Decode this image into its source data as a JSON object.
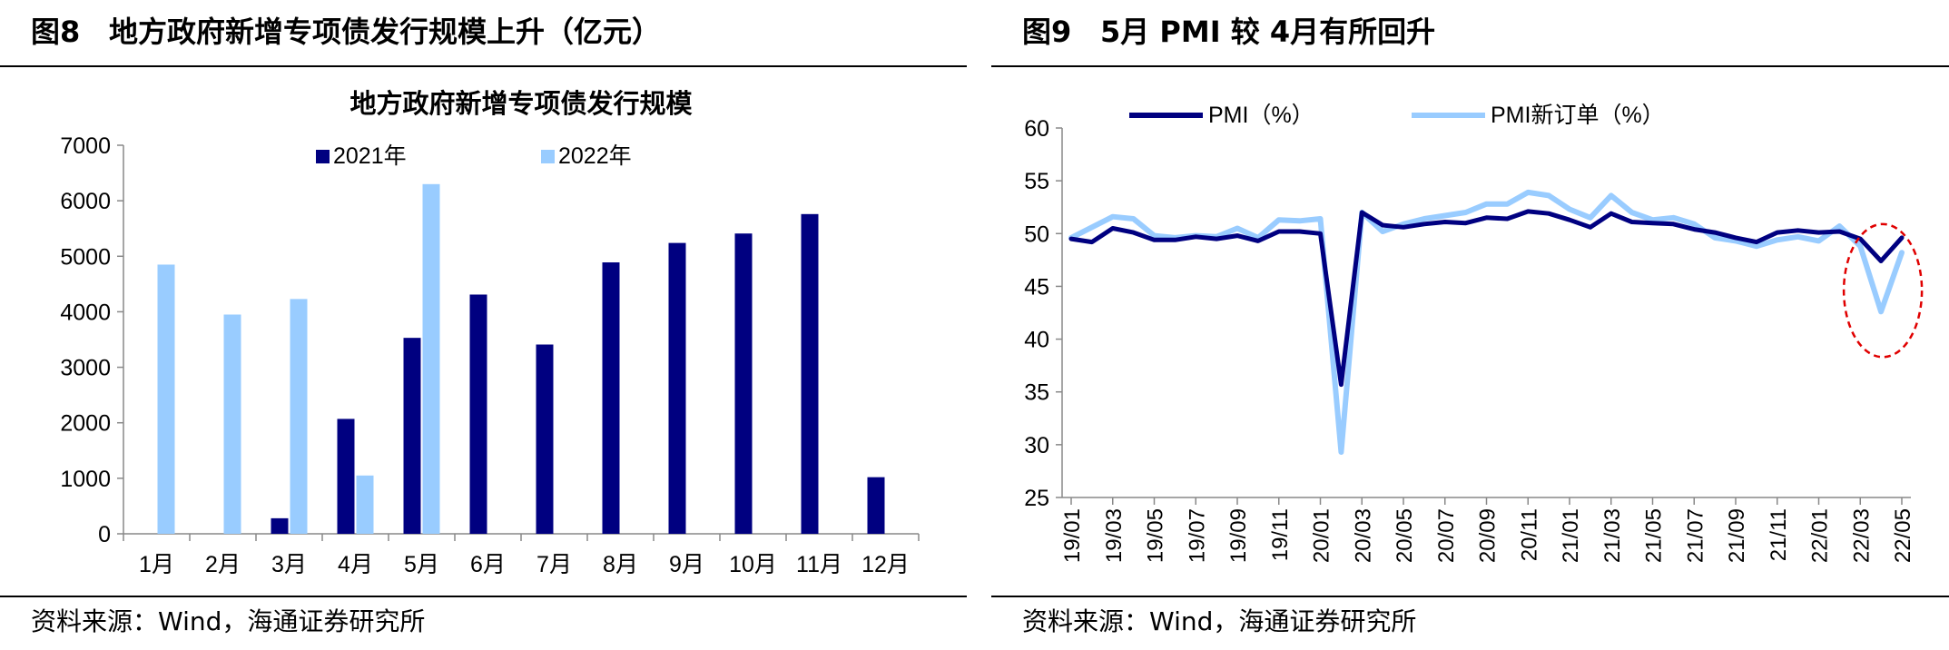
{
  "left_panel": {
    "figure_number": "图8",
    "figure_title": "地方政府新增专项债发行规模上升（亿元）",
    "source_text": "资料来源：Wind，海通证券研究所"
  },
  "right_panel": {
    "figure_number": "图9",
    "figure_title": "5月 PMI 较 4月有所回升",
    "source_text": "资料来源：Wind，海通证券研究所"
  },
  "chart_data": [
    {
      "type": "bar",
      "title": "地方政府新增专项债发行规模",
      "categories": [
        "1月",
        "2月",
        "3月",
        "4月",
        "5月",
        "6月",
        "7月",
        "8月",
        "9月",
        "10月",
        "11月",
        "12月"
      ],
      "series": [
        {
          "name": "2021年",
          "color": "#000080",
          "values": [
            0,
            0,
            280,
            2070,
            3530,
            4310,
            3410,
            4890,
            5240,
            5410,
            5760,
            1020
          ]
        },
        {
          "name": "2022年",
          "color": "#99ccff",
          "values": [
            4850,
            3950,
            4230,
            1050,
            6300,
            0,
            0,
            0,
            0,
            0,
            0,
            0
          ]
        }
      ],
      "ylim": [
        0,
        7000
      ],
      "yticks": [
        0,
        1000,
        2000,
        3000,
        4000,
        5000,
        6000,
        7000
      ],
      "legend": "top-center"
    },
    {
      "type": "line",
      "x_tick_labels": [
        "19/01",
        "19/03",
        "19/05",
        "19/07",
        "19/09",
        "19/11",
        "20/01",
        "20/03",
        "20/05",
        "20/07",
        "20/09",
        "20/11",
        "21/01",
        "21/03",
        "21/05",
        "21/07",
        "21/09",
        "21/11",
        "22/01",
        "22/03",
        "22/05"
      ],
      "x": [
        "19/01",
        "19/02",
        "19/03",
        "19/04",
        "19/05",
        "19/06",
        "19/07",
        "19/08",
        "19/09",
        "19/10",
        "19/11",
        "19/12",
        "20/01",
        "20/02",
        "20/03",
        "20/04",
        "20/05",
        "20/06",
        "20/07",
        "20/08",
        "20/09",
        "20/10",
        "20/11",
        "20/12",
        "21/01",
        "21/02",
        "21/03",
        "21/04",
        "21/05",
        "21/06",
        "21/07",
        "21/08",
        "21/09",
        "21/10",
        "21/11",
        "21/12",
        "22/01",
        "22/02",
        "22/03",
        "22/04",
        "22/05"
      ],
      "series": [
        {
          "name": "PMI（%）",
          "color": "#000080",
          "values": [
            49.5,
            49.2,
            50.5,
            50.1,
            49.4,
            49.4,
            49.7,
            49.5,
            49.8,
            49.3,
            50.2,
            50.2,
            50.0,
            35.7,
            52.0,
            50.8,
            50.6,
            50.9,
            51.1,
            51.0,
            51.5,
            51.4,
            52.1,
            51.9,
            51.3,
            50.6,
            51.9,
            51.1,
            51.0,
            50.9,
            50.4,
            50.1,
            49.6,
            49.2,
            50.1,
            50.3,
            50.1,
            50.2,
            49.5,
            47.4,
            49.6
          ]
        },
        {
          "name": "PMI新订单（%）",
          "color": "#99ccff",
          "values": [
            49.6,
            50.6,
            51.6,
            51.4,
            49.8,
            49.6,
            49.8,
            49.7,
            50.5,
            49.6,
            51.3,
            51.2,
            51.4,
            29.3,
            52.0,
            50.2,
            50.9,
            51.4,
            51.7,
            52.0,
            52.8,
            52.8,
            53.9,
            53.6,
            52.3,
            51.5,
            53.6,
            52.0,
            51.3,
            51.5,
            50.9,
            49.6,
            49.3,
            48.8,
            49.4,
            49.7,
            49.3,
            50.7,
            48.8,
            42.6,
            48.2
          ]
        }
      ],
      "ylim": [
        25,
        60
      ],
      "yticks": [
        25,
        30,
        35,
        40,
        45,
        50,
        55,
        60
      ],
      "legend": "top-center",
      "annotation": "red dashed ellipse highlighting 22/03–22/05"
    }
  ]
}
